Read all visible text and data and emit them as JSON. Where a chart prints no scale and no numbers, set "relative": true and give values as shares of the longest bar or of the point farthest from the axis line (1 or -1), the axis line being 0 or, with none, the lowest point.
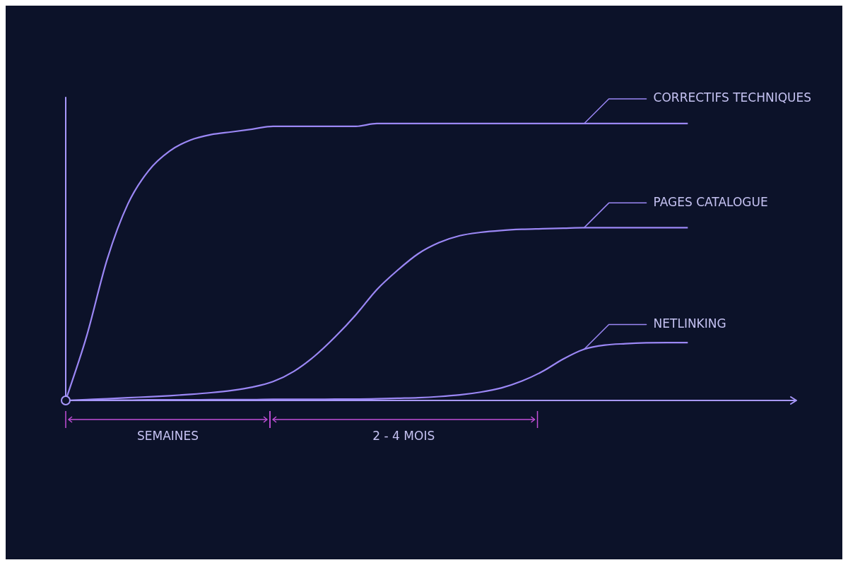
{
  "chart_data": {
    "type": "line",
    "relative": true,
    "legend": false,
    "marker": "none",
    "line_style": "solid",
    "categories": [
      null,
      null,
      null,
      null,
      null,
      null,
      null,
      null,
      null,
      null,
      null,
      null,
      null,
      null,
      null,
      null,
      null,
      null,
      null,
      null,
      null,
      null,
      null,
      null,
      null,
      null,
      null,
      null,
      null,
      null,
      null,
      null,
      null,
      null,
      null,
      null
    ],
    "series": [
      {
        "name": "CORRECTIFS TECHNIQUES",
        "color": "#9b87f5",
        "values": [
          0,
          0.23,
          0.51,
          0.71,
          0.83,
          0.9,
          0.94,
          0.96,
          0.97,
          0.98,
          0.99,
          0.99,
          0.99,
          0.99,
          0.99,
          1,
          1,
          1,
          1,
          1,
          1,
          1,
          1,
          1,
          1,
          1,
          1,
          1,
          1,
          1,
          1,
          null,
          null,
          null,
          null,
          null
        ]
      },
      {
        "name": "PAGES CATALOGUE",
        "color": "#9b87f5",
        "values": [
          0,
          0.003,
          0.006,
          0.01,
          0.013,
          0.017,
          0.022,
          0.028,
          0.036,
          0.048,
          0.068,
          0.105,
          0.16,
          0.23,
          0.31,
          0.4,
          0.47,
          0.53,
          0.57,
          0.595,
          0.607,
          0.614,
          0.618,
          0.62,
          0.622,
          0.624,
          0.624,
          0.624,
          0.624,
          0.624,
          0.624,
          null,
          null,
          null,
          null,
          null
        ]
      },
      {
        "name": "NETLINKING",
        "color": "#9b87f5",
        "values": [
          0,
          0,
          0.001,
          0.001,
          0.002,
          0.002,
          0.002,
          0.003,
          0.003,
          0.003,
          0.004,
          0.004,
          0.004,
          0.005,
          0.005,
          0.006,
          0.008,
          0.01,
          0.014,
          0.02,
          0.03,
          0.045,
          0.07,
          0.105,
          0.15,
          0.185,
          0.2,
          0.205,
          0.208,
          0.209,
          0.209,
          null,
          null,
          null,
          null,
          null
        ]
      }
    ],
    "annotations": [
      "SEMAINES",
      "2 - 4 MOIS"
    ]
  }
}
